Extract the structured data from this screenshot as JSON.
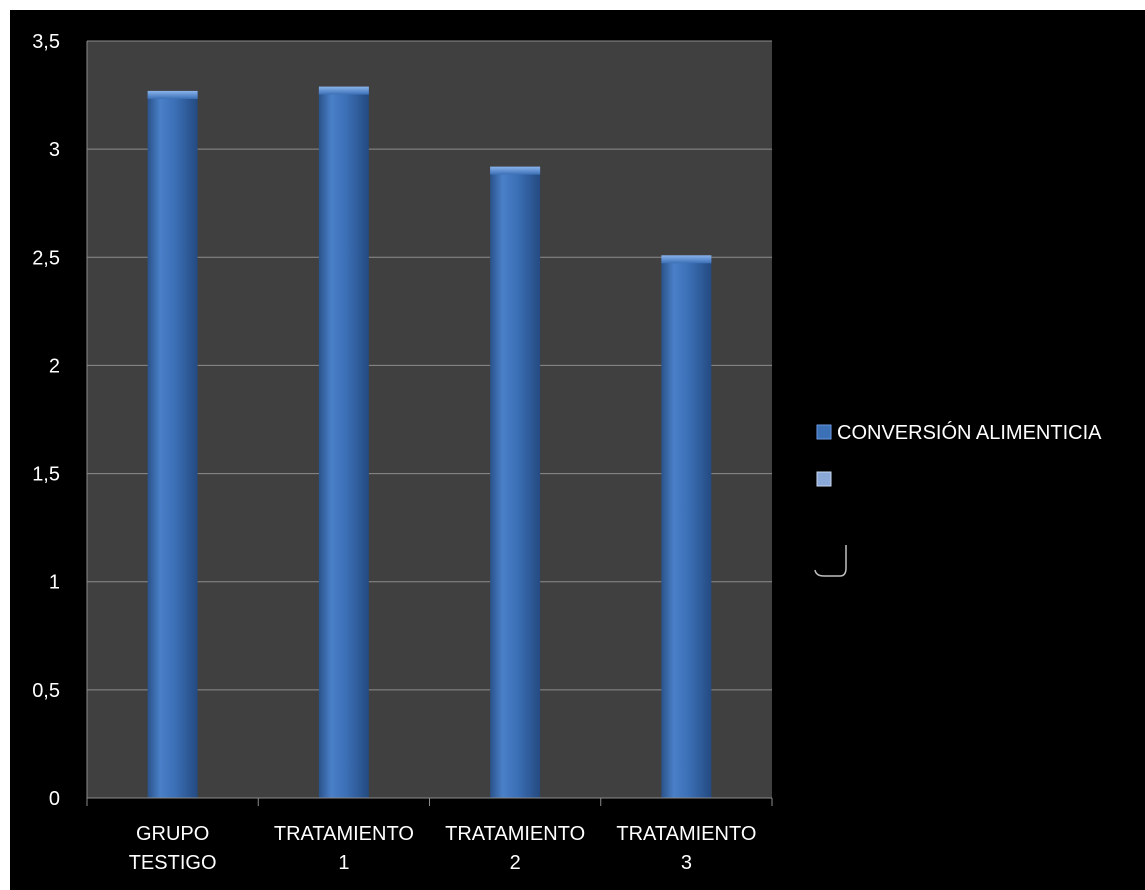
{
  "chart_data": {
    "type": "bar",
    "categories": [
      [
        "GRUPO",
        "TESTIGO"
      ],
      [
        "TRATAMIENTO",
        "1"
      ],
      [
        "TRATAMIENTO",
        "2"
      ],
      [
        "TRATAMIENTO",
        "3"
      ]
    ],
    "series": [
      {
        "name": "CONVERSIÓN ALIMENTICIA",
        "values": [
          3.26,
          3.28,
          2.91,
          2.5
        ]
      }
    ],
    "yticks": [
      "0",
      "0,5",
      "1",
      "1,5",
      "2",
      "2,5",
      "3",
      "3,5"
    ],
    "ylim": [
      0,
      3.5
    ],
    "grid": true,
    "legend": "right",
    "legend_entries": [
      "CONVERSIÓN ALIMENTICIA",
      ""
    ],
    "colors": {
      "background": "#000000",
      "plot_area": "#404040",
      "gridline": "#8c8c8c",
      "bar_fill": "#3b6fb6",
      "bar_light": "#5b8fd6",
      "bar_dark": "#2a528a",
      "text": "#ffffff"
    }
  }
}
